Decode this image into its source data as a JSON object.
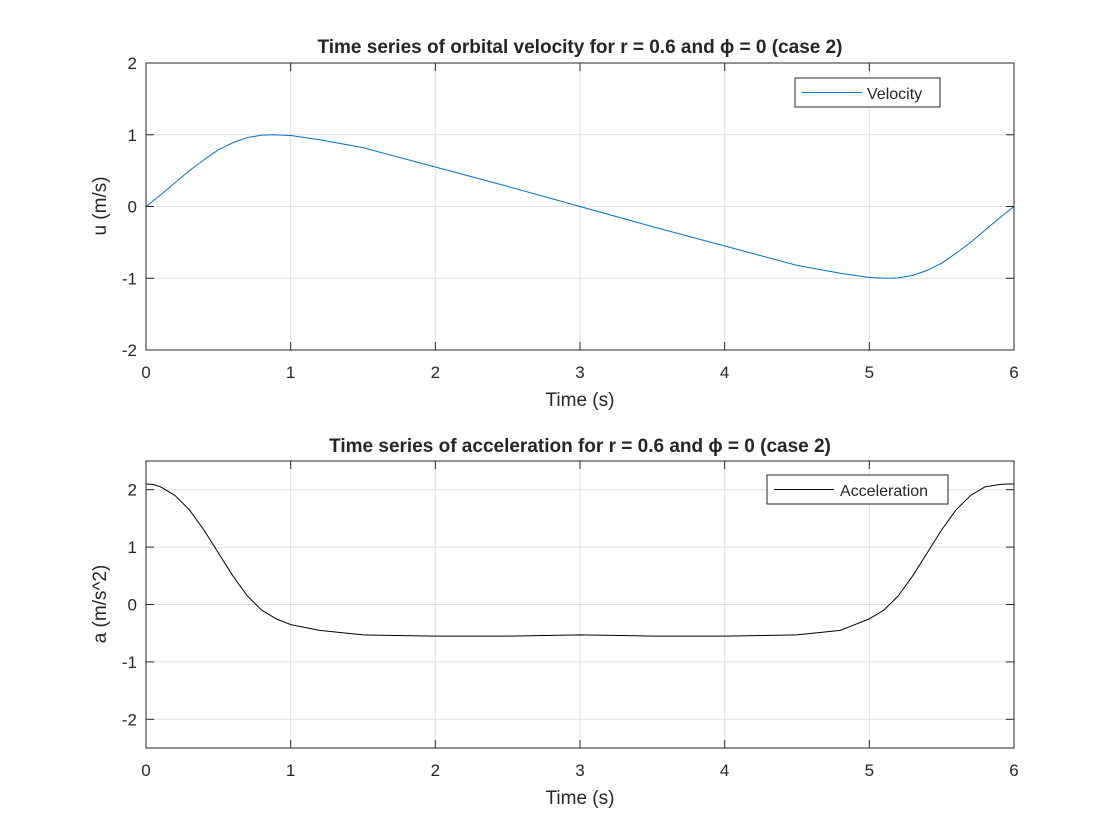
{
  "chart_data": [
    {
      "type": "line",
      "title": "Time series of orbital velocity for r = 0.6 and ϕ = 0 (case 2)",
      "xlabel": "Time (s)",
      "ylabel": "u (m/s)",
      "xlim": [
        0,
        6
      ],
      "ylim": [
        -2,
        2
      ],
      "xticks": [
        "0",
        "1",
        "2",
        "3",
        "4",
        "5",
        "6"
      ],
      "yticks": [
        "-2",
        "-1",
        "0",
        "1",
        "2"
      ],
      "grid": true,
      "legend_position": "top-right",
      "series": [
        {
          "name": "Velocity",
          "color": "#0072bd",
          "x": [
            0,
            0.1,
            0.2,
            0.3,
            0.4,
            0.5,
            0.6,
            0.7,
            0.8,
            0.88,
            1.0,
            1.2,
            1.5,
            2.0,
            2.5,
            3.0,
            3.5,
            4.0,
            4.5,
            4.8,
            5.0,
            5.12,
            5.2,
            5.3,
            5.4,
            5.5,
            5.6,
            5.7,
            5.8,
            5.9,
            6.0
          ],
          "y": [
            0,
            0.16,
            0.33,
            0.5,
            0.65,
            0.79,
            0.89,
            0.96,
            0.995,
            1.0,
            0.99,
            0.93,
            0.82,
            0.55,
            0.28,
            0,
            -0.28,
            -0.55,
            -0.82,
            -0.93,
            -0.99,
            -1.0,
            -0.995,
            -0.96,
            -0.89,
            -0.79,
            -0.65,
            -0.5,
            -0.33,
            -0.16,
            0
          ]
        }
      ]
    },
    {
      "type": "line",
      "title": "Time series of acceleration for r = 0.6 and ϕ = 0 (case 2)",
      "xlabel": "Time (s)",
      "ylabel": "a (m/s^2)",
      "xlim": [
        0,
        6
      ],
      "ylim": [
        -2.5,
        2.5
      ],
      "xticks": [
        "0",
        "1",
        "2",
        "3",
        "4",
        "5",
        "6"
      ],
      "yticks": [
        "-2",
        "-1",
        "0",
        "1",
        "2"
      ],
      "grid": true,
      "legend_position": "top-right",
      "series": [
        {
          "name": "Acceleration",
          "color": "#000000",
          "x": [
            0,
            0.05,
            0.1,
            0.2,
            0.3,
            0.4,
            0.5,
            0.6,
            0.7,
            0.8,
            0.9,
            1.0,
            1.2,
            1.5,
            2.0,
            2.5,
            3.0,
            3.5,
            4.0,
            4.5,
            4.8,
            5.0,
            5.1,
            5.2,
            5.3,
            5.4,
            5.5,
            5.6,
            5.7,
            5.8,
            5.9,
            5.95,
            6.0
          ],
          "y": [
            2.1,
            2.09,
            2.05,
            1.9,
            1.65,
            1.3,
            0.9,
            0.5,
            0.15,
            -0.1,
            -0.25,
            -0.35,
            -0.45,
            -0.53,
            -0.55,
            -0.55,
            -0.53,
            -0.55,
            -0.55,
            -0.53,
            -0.45,
            -0.25,
            -0.1,
            0.15,
            0.5,
            0.9,
            1.3,
            1.65,
            1.9,
            2.05,
            2.09,
            2.1,
            2.1
          ]
        }
      ]
    }
  ]
}
